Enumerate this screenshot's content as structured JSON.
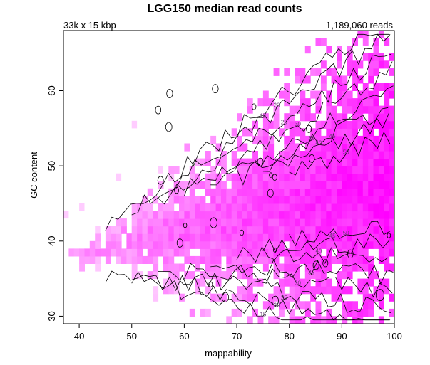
{
  "chart_data": {
    "type": "heatmap",
    "title": "LGG150 median read counts",
    "subtitle_left": "33k x 15 kbp",
    "subtitle_right": "1,189,060 reads",
    "xlabel": "mappability",
    "ylabel": "GC content",
    "xlim": [
      37,
      100
    ],
    "ylim": [
      29,
      68
    ],
    "x_ticks": [
      40,
      50,
      60,
      70,
      80,
      90,
      100
    ],
    "y_ticks": [
      30,
      40,
      50,
      60
    ],
    "grid": false,
    "legend": "none",
    "color_scale": {
      "low": "#ffffff",
      "high": "#ff00ff"
    },
    "contour_levels": [
      15,
      20,
      25,
      30,
      35,
      40,
      45,
      50
    ],
    "contour_color": "#000000",
    "cell_width_mappability": 1,
    "cell_height_gc": 1
  }
}
